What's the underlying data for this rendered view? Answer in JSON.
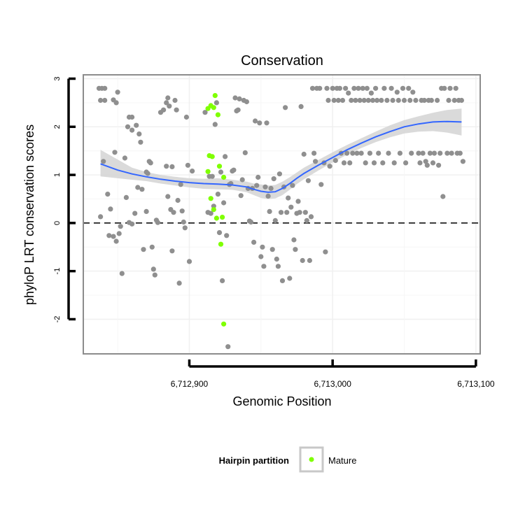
{
  "chart_data": {
    "type": "scatter",
    "title": "Conservation",
    "xlabel": "Genomic Position",
    "ylabel": "phyloP LRT conservation scores",
    "xlim": [
      6712826,
      6713103
    ],
    "ylim": [
      -2.72,
      3.08
    ],
    "x_ticks": [
      {
        "value": 6712900,
        "label": "6,712,900"
      },
      {
        "value": 6713000,
        "label": "6,713,000"
      },
      {
        "value": 6713100,
        "label": "6,713,100"
      }
    ],
    "y_ticks": [
      {
        "value": -2,
        "label": "-2"
      },
      {
        "value": -1,
        "label": "-1"
      },
      {
        "value": 0,
        "label": "0"
      },
      {
        "value": 1,
        "label": "1"
      },
      {
        "value": 2,
        "label": "2"
      },
      {
        "value": 3,
        "label": "3"
      }
    ],
    "reference_line": {
      "y": 0,
      "style": "dashed"
    },
    "grid": true,
    "legend": {
      "title": "Hairpin partition",
      "position": "bottom",
      "entries": [
        "Mature"
      ]
    },
    "colors": {
      "other": "#8f8f8f",
      "mature": "#7fff00",
      "smooth": "#3366ff",
      "band": "#d3d3d3"
    },
    "series": [
      {
        "points": [
          [
            6712837,
            2.8
          ],
          [
            6712839,
            2.8
          ],
          [
            6712841,
            2.8
          ],
          [
            6712838,
            2.55
          ],
          [
            6712841,
            2.55
          ],
          [
            6712838,
            0.13
          ],
          [
            6712840,
            1.28
          ],
          [
            6712843,
            0.6
          ],
          [
            6712844,
            -0.26
          ],
          [
            6712845,
            0.29
          ],
          [
            6712847,
            -0.28
          ],
          [
            6712848,
            1.47
          ],
          [
            6712847,
            2.56
          ],
          [
            6712849,
            2.5
          ],
          [
            6712850,
            2.72
          ],
          [
            6712849,
            -0.38
          ],
          [
            6712851,
            -0.22
          ],
          [
            6712852,
            -0.07
          ],
          [
            6712853,
            -1.05
          ],
          [
            6712855,
            1.35
          ],
          [
            6712856,
            0.53
          ],
          [
            6712857,
            2.0
          ],
          [
            6712858,
            2.2
          ],
          [
            6712860,
            2.2
          ],
          [
            6712860,
            1.93
          ],
          [
            6712858,
            0.01
          ],
          [
            6712860,
            -0.02
          ],
          [
            6712862,
            0.2
          ],
          [
            6712863,
            2.03
          ],
          [
            6712864,
            0.74
          ],
          [
            6712865,
            1.85
          ],
          [
            6712866,
            1.68
          ],
          [
            6712867,
            0.7
          ],
          [
            6712868,
            -0.55
          ],
          [
            6712870,
            0.24
          ],
          [
            6712870,
            1.06
          ],
          [
            6712871,
            1.03
          ],
          [
            6712872,
            1.28
          ],
          [
            6712873,
            1.25
          ],
          [
            6712874,
            -0.5
          ],
          [
            6712875,
            -0.96
          ],
          [
            6712876,
            -1.08
          ],
          [
            6712877,
            0.06
          ],
          [
            6712878,
            0.01
          ],
          [
            6712880,
            2.3
          ],
          [
            6712882,
            2.35
          ],
          [
            6712884,
            2.5
          ],
          [
            6712885,
            2.6
          ],
          [
            6712886,
            2.43
          ],
          [
            6712884,
            1.18
          ],
          [
            6712885,
            0.55
          ],
          [
            6712887,
            0.28
          ],
          [
            6712888,
            1.17
          ],
          [
            6712888,
            -0.58
          ],
          [
            6712889,
            0.22
          ],
          [
            6712890,
            2.55
          ],
          [
            6712891,
            2.35
          ],
          [
            6712892,
            0.47
          ],
          [
            6712893,
            -1.25
          ],
          [
            6712894,
            0.8
          ],
          [
            6712895,
            0.25
          ],
          [
            6712896,
            0.02
          ],
          [
            6712897,
            -0.1
          ],
          [
            6712898,
            2.2
          ],
          [
            6712899,
            1.2
          ],
          [
            6712900,
            -0.8
          ],
          [
            6712902,
            1.08
          ],
          [
            6712911,
            2.3
          ],
          [
            6712913,
            0.22
          ],
          [
            6712914,
            0.97
          ],
          [
            6712915,
            0.2
          ],
          [
            6712916,
            0.97
          ],
          [
            6712917,
            0.35
          ],
          [
            6712918,
            2.05
          ],
          [
            6712919,
            2.5
          ],
          [
            6712920,
            0.6
          ],
          [
            6712921,
            -0.2
          ],
          [
            6712922,
            1.06
          ],
          [
            6712923,
            -1.2
          ],
          [
            6712924,
            0.42
          ],
          [
            6712925,
            1.38
          ],
          [
            6712926,
            -0.26
          ],
          [
            6712927,
            -2.57
          ],
          [
            6712928,
            0.8
          ],
          [
            6712929,
            0.82
          ],
          [
            6712930,
            1.08
          ],
          [
            6712931,
            1.1
          ],
          [
            6712932,
            2.6
          ],
          [
            6712933,
            2.33
          ],
          [
            6712934,
            2.35
          ],
          [
            6712935,
            2.58
          ],
          [
            6712936,
            0.57
          ],
          [
            6712937,
            0.9
          ],
          [
            6712938,
            2.55
          ],
          [
            6712939,
            1.46
          ],
          [
            6712940,
            2.52
          ],
          [
            6712941,
            0.72
          ],
          [
            6712942,
            0.04
          ],
          [
            6712943,
            0.02
          ],
          [
            6712944,
            0.72
          ],
          [
            6712945,
            -0.4
          ],
          [
            6712946,
            2.12
          ],
          [
            6712947,
            0.78
          ],
          [
            6712948,
            0.95
          ],
          [
            6712949,
            2.08
          ],
          [
            6712950,
            -0.7
          ],
          [
            6712951,
            -0.5
          ],
          [
            6712952,
            -0.9
          ],
          [
            6712953,
            0.75
          ],
          [
            6712954,
            2.08
          ],
          [
            6712955,
            0.56
          ],
          [
            6712956,
            0.24
          ],
          [
            6712957,
            0.72
          ],
          [
            6712958,
            -0.55
          ],
          [
            6712959,
            0.92
          ],
          [
            6712960,
            0.05
          ],
          [
            6712961,
            -0.75
          ],
          [
            6712962,
            -0.9
          ],
          [
            6712963,
            1.02
          ],
          [
            6712964,
            0.22
          ],
          [
            6712965,
            -1.2
          ],
          [
            6712966,
            0.75
          ],
          [
            6712967,
            2.4
          ],
          [
            6712968,
            0.22
          ],
          [
            6712969,
            0.52
          ],
          [
            6712970,
            -1.15
          ],
          [
            6712971,
            0.33
          ],
          [
            6712972,
            0.78
          ],
          [
            6712973,
            -0.35
          ],
          [
            6712974,
            -0.55
          ],
          [
            6712975,
            0.2
          ],
          [
            6712976,
            0.45
          ],
          [
            6712977,
            0.22
          ],
          [
            6712978,
            2.42
          ],
          [
            6712979,
            -0.78
          ],
          [
            6712980,
            1.43
          ],
          [
            6712981,
            0.22
          ],
          [
            6712982,
            0.05
          ],
          [
            6712983,
            0.88
          ],
          [
            6712984,
            -0.78
          ],
          [
            6712985,
            0.13
          ],
          [
            6712986,
            2.8
          ],
          [
            6712987,
            1.45
          ],
          [
            6712988,
            1.28
          ],
          [
            6712989,
            2.8
          ],
          [
            6712991,
            2.8
          ],
          [
            6712992,
            0.8
          ],
          [
            6712994,
            1.25
          ],
          [
            6712995,
            -0.6
          ],
          [
            6712996,
            2.8
          ],
          [
            6712997,
            2.55
          ],
          [
            6712998,
            1.18
          ],
          [
            6713000,
            2.8
          ],
          [
            6713001,
            2.55
          ],
          [
            6713002,
            1.3
          ],
          [
            6713003,
            2.8
          ],
          [
            6713004,
            2.55
          ],
          [
            6713005,
            2.8
          ],
          [
            6713006,
            1.45
          ],
          [
            6713007,
            2.55
          ],
          [
            6713008,
            1.25
          ],
          [
            6713009,
            2.8
          ],
          [
            6713010,
            1.45
          ],
          [
            6713011,
            2.7
          ],
          [
            6713012,
            1.25
          ],
          [
            6713013,
            2.55
          ],
          [
            6713014,
            1.45
          ],
          [
            6713015,
            2.8
          ],
          [
            6713016,
            2.55
          ],
          [
            6713017,
            1.45
          ],
          [
            6713018,
            2.8
          ],
          [
            6713019,
            2.55
          ],
          [
            6713020,
            1.45
          ],
          [
            6713021,
            2.8
          ],
          [
            6713022,
            2.55
          ],
          [
            6713023,
            1.25
          ],
          [
            6713024,
            2.8
          ],
          [
            6713025,
            2.55
          ],
          [
            6713026,
            1.45
          ],
          [
            6713027,
            2.7
          ],
          [
            6713028,
            2.55
          ],
          [
            6713029,
            1.25
          ],
          [
            6713030,
            2.8
          ],
          [
            6713031,
            2.55
          ],
          [
            6713032,
            1.45
          ],
          [
            6713034,
            2.55
          ],
          [
            6713035,
            1.25
          ],
          [
            6713036,
            2.8
          ],
          [
            6713038,
            2.55
          ],
          [
            6713039,
            1.45
          ],
          [
            6713041,
            2.8
          ],
          [
            6713042,
            2.55
          ],
          [
            6713043,
            1.25
          ],
          [
            6713045,
            2.72
          ],
          [
            6713046,
            2.55
          ],
          [
            6713047,
            1.45
          ],
          [
            6713049,
            2.8
          ],
          [
            6713050,
            2.55
          ],
          [
            6713051,
            1.25
          ],
          [
            6713053,
            2.8
          ],
          [
            6713054,
            2.55
          ],
          [
            6713055,
            1.45
          ],
          [
            6713056,
            2.72
          ],
          [
            6713058,
            2.55
          ],
          [
            6713060,
            1.45
          ],
          [
            6713061,
            1.25
          ],
          [
            6713062,
            2.55
          ],
          [
            6713063,
            1.45
          ],
          [
            6713064,
            2.55
          ],
          [
            6713065,
            1.28
          ],
          [
            6713066,
            1.2
          ],
          [
            6713067,
            2.55
          ],
          [
            6713068,
            1.45
          ],
          [
            6713069,
            2.55
          ],
          [
            6713070,
            1.25
          ],
          [
            6713071,
            1.45
          ],
          [
            6713073,
            2.55
          ],
          [
            6713074,
            1.2
          ],
          [
            6713075,
            1.45
          ],
          [
            6713076,
            2.8
          ],
          [
            6713077,
            0.55
          ],
          [
            6713078,
            2.8
          ],
          [
            6713080,
            1.45
          ],
          [
            6713081,
            2.55
          ],
          [
            6713082,
            2.8
          ],
          [
            6713083,
            1.45
          ],
          [
            6713085,
            2.55
          ],
          [
            6713086,
            2.8
          ],
          [
            6713087,
            1.45
          ],
          [
            6713088,
            2.55
          ],
          [
            6713089,
            1.45
          ],
          [
            6713090,
            2.55
          ],
          [
            6713091,
            1.28
          ]
        ]
      },
      {
        "name": "Mature",
        "points": [
          [
            6712913,
            2.38
          ],
          [
            6712915,
            2.44
          ],
          [
            6712917,
            2.4
          ],
          [
            6712918,
            2.65
          ],
          [
            6712920,
            2.25
          ],
          [
            6712914,
            1.4
          ],
          [
            6712916,
            1.38
          ],
          [
            6712913,
            1.07
          ],
          [
            6712915,
            0.51
          ],
          [
            6712917,
            0.28
          ],
          [
            6712919,
            0.1
          ],
          [
            6712921,
            1.18
          ],
          [
            6712922,
            -0.44
          ],
          [
            6712923,
            0.12
          ],
          [
            6712924,
            0.95
          ],
          [
            6712924,
            -2.1
          ]
        ]
      }
    ],
    "smooth": {
      "x": [
        6712838,
        6712850,
        6712860,
        6712870,
        6712880,
        6712890,
        6712900,
        6712910,
        6712920,
        6712930,
        6712940,
        6712945,
        6712950,
        6712955,
        6712960,
        6712965,
        6712970,
        6712975,
        6712980,
        6712990,
        6713000,
        6713010,
        6713020,
        6713030,
        6713040,
        6713050,
        6713060,
        6713070,
        6713080,
        6713090
      ],
      "y": [
        1.23,
        1.1,
        1.02,
        0.96,
        0.91,
        0.87,
        0.84,
        0.82,
        0.81,
        0.79,
        0.75,
        0.7,
        0.66,
        0.64,
        0.65,
        0.72,
        0.82,
        0.93,
        1.03,
        1.2,
        1.36,
        1.52,
        1.66,
        1.79,
        1.9,
        2.0,
        2.06,
        2.1,
        2.11,
        2.1
      ],
      "lower": [
        0.97,
        0.93,
        0.9,
        0.87,
        0.82,
        0.78,
        0.74,
        0.71,
        0.7,
        0.69,
        0.64,
        0.58,
        0.52,
        0.5,
        0.51,
        0.58,
        0.69,
        0.81,
        0.91,
        1.09,
        1.26,
        1.42,
        1.56,
        1.68,
        1.78,
        1.86,
        1.9,
        1.91,
        1.88,
        1.82
      ],
      "upper": [
        1.52,
        1.32,
        1.15,
        1.06,
        1.0,
        0.96,
        0.93,
        0.92,
        0.93,
        0.9,
        0.86,
        0.82,
        0.8,
        0.78,
        0.79,
        0.86,
        0.95,
        1.05,
        1.15,
        1.31,
        1.47,
        1.62,
        1.76,
        1.9,
        2.03,
        2.14,
        2.22,
        2.29,
        2.35,
        2.38
      ]
    }
  }
}
